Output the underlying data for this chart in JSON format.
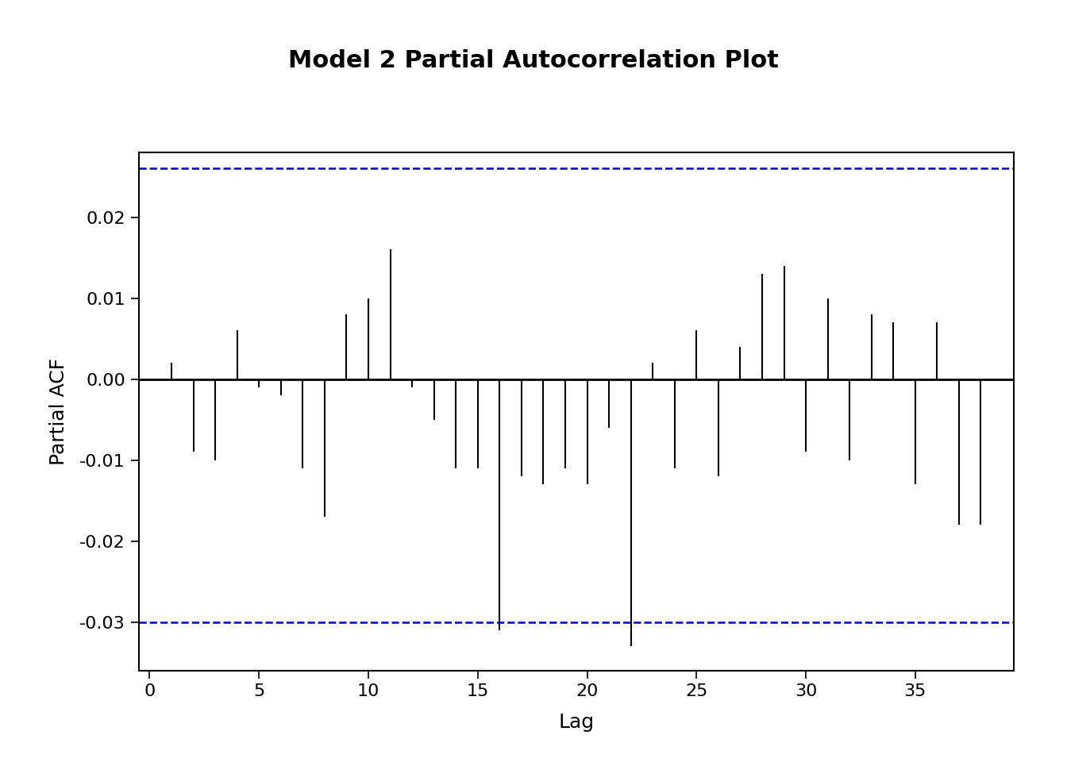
{
  "title": "Model 2 Partial Autocorrelation Plot",
  "xlabel": "Lag",
  "ylabel": "Partial ACF",
  "ylim": [
    -0.036,
    0.028
  ],
  "yticks": [
    -0.03,
    -0.02,
    -0.01,
    0.0,
    0.01,
    0.02
  ],
  "xticks": [
    0,
    5,
    10,
    15,
    20,
    25,
    30,
    35
  ],
  "conf_interval": 0.026,
  "conf_interval_neg": -0.03,
  "xlim": [
    -0.5,
    39.5
  ],
  "lags": [
    1,
    2,
    3,
    4,
    5,
    6,
    7,
    8,
    9,
    10,
    11,
    12,
    13,
    14,
    15,
    16,
    17,
    18,
    19,
    20,
    21,
    22,
    23,
    24,
    25,
    26,
    27,
    28,
    29,
    30,
    31,
    32,
    33,
    34,
    35,
    36,
    37,
    38
  ],
  "pacf_values": [
    0.002,
    -0.009,
    -0.01,
    0.006,
    -0.001,
    -0.002,
    -0.011,
    -0.017,
    0.008,
    0.01,
    0.016,
    -0.001,
    -0.005,
    -0.011,
    -0.011,
    -0.031,
    -0.012,
    -0.013,
    -0.011,
    -0.013,
    -0.006,
    -0.033,
    0.002,
    -0.011,
    0.006,
    -0.012,
    0.004,
    0.013,
    0.014,
    -0.009,
    0.01,
    -0.01,
    0.008,
    0.007,
    -0.013,
    0.007,
    -0.018,
    -0.018
  ],
  "bar_color": "#000000",
  "ci_color": "#0000CC",
  "background_color": "#FFFFFF",
  "title_fontsize": 22,
  "label_fontsize": 18,
  "tick_fontsize": 16,
  "bar_linewidth": 1.5,
  "ci_linewidth": 1.8,
  "zero_linewidth": 2.0
}
